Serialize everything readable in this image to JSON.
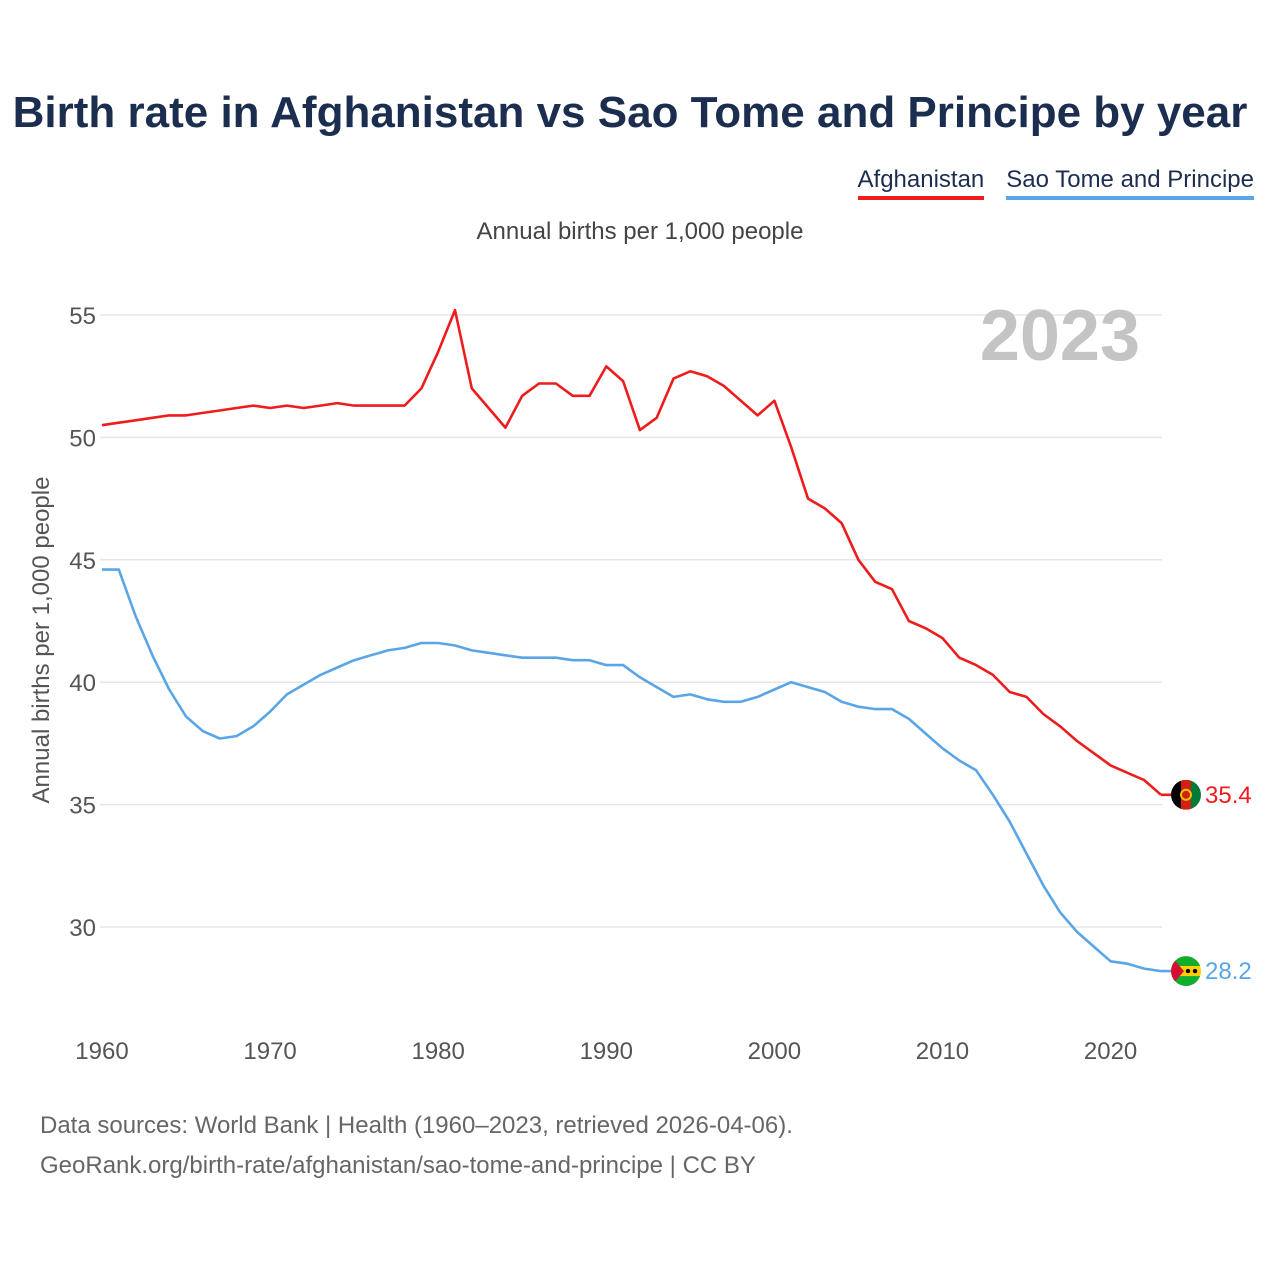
{
  "title": "Birth rate in Afghanistan vs Sao Tome and Principe by year",
  "subtitle": "Annual births per 1,000 people",
  "legend": {
    "afghanistan": "Afghanistan",
    "sao_tome": "Sao Tome and Principe"
  },
  "year_watermark": "2023",
  "source": {
    "line1": "Data sources: World Bank | Health (1960–2023, retrieved 2026-04-06).",
    "line2": "GeoRank.org/birth-rate/afghanistan/sao-tome-and-principe | CC BY"
  },
  "colors": {
    "afghanistan": "#ee1c1c",
    "sao_tome": "#5aa5e6",
    "title": "#1c2e4f",
    "grid": "#e6e6e6",
    "watermark": "#c4c4c4"
  },
  "chart_data": {
    "type": "line",
    "title": "Birth rate in Afghanistan vs Sao Tome and Principe by year",
    "xlabel": "",
    "ylabel": "Annual births per 1,000 people",
    "xlim": [
      1960,
      2023
    ],
    "ylim": [
      26,
      57
    ],
    "grid": true,
    "legend_position": "top-right",
    "x_ticks": [
      1960,
      1970,
      1980,
      1990,
      2000,
      2010,
      2020
    ],
    "y_ticks": [
      30,
      35,
      40,
      45,
      50,
      55
    ],
    "x": [
      1960,
      1961,
      1962,
      1963,
      1964,
      1965,
      1966,
      1967,
      1968,
      1969,
      1970,
      1971,
      1972,
      1973,
      1974,
      1975,
      1976,
      1977,
      1978,
      1979,
      1980,
      1981,
      1982,
      1983,
      1984,
      1985,
      1986,
      1987,
      1988,
      1989,
      1990,
      1991,
      1992,
      1993,
      1994,
      1995,
      1996,
      1997,
      1998,
      1999,
      2000,
      2001,
      2002,
      2003,
      2004,
      2005,
      2006,
      2007,
      2008,
      2009,
      2010,
      2011,
      2012,
      2013,
      2014,
      2015,
      2016,
      2017,
      2018,
      2019,
      2020,
      2021,
      2022,
      2023
    ],
    "series": [
      {
        "name": "Afghanistan",
        "end_label": "35.4",
        "values": [
          50.5,
          50.6,
          50.7,
          50.8,
          50.9,
          50.9,
          51.0,
          51.1,
          51.2,
          51.3,
          51.2,
          51.3,
          51.2,
          51.3,
          51.4,
          51.3,
          51.3,
          51.3,
          51.3,
          52.0,
          53.5,
          55.2,
          52.0,
          51.2,
          50.4,
          51.7,
          52.2,
          52.2,
          51.7,
          51.7,
          52.9,
          52.3,
          50.3,
          50.8,
          52.4,
          52.7,
          52.5,
          52.1,
          51.5,
          50.9,
          51.5,
          49.6,
          47.5,
          47.1,
          46.5,
          45.0,
          44.1,
          43.8,
          42.5,
          42.2,
          41.8,
          41.0,
          40.7,
          40.3,
          39.6,
          39.4,
          38.7,
          38.2,
          37.6,
          37.1,
          36.6,
          36.3,
          36.0,
          35.4
        ]
      },
      {
        "name": "Sao Tome and Principe",
        "end_label": "28.2",
        "values": [
          44.6,
          44.6,
          42.7,
          41.1,
          39.7,
          38.6,
          38.0,
          37.7,
          37.8,
          38.2,
          38.8,
          39.5,
          39.9,
          40.3,
          40.6,
          40.9,
          41.1,
          41.3,
          41.4,
          41.6,
          41.6,
          41.5,
          41.3,
          41.2,
          41.1,
          41.0,
          41.0,
          41.0,
          40.9,
          40.9,
          40.7,
          40.7,
          40.2,
          39.8,
          39.4,
          39.5,
          39.3,
          39.2,
          39.2,
          39.4,
          39.7,
          40.0,
          39.8,
          39.6,
          39.2,
          39.0,
          38.9,
          38.9,
          38.5,
          37.9,
          37.3,
          36.8,
          36.4,
          35.4,
          34.3,
          33.0,
          31.7,
          30.6,
          29.8,
          29.2,
          28.6,
          28.5,
          28.3,
          28.2
        ]
      }
    ]
  }
}
